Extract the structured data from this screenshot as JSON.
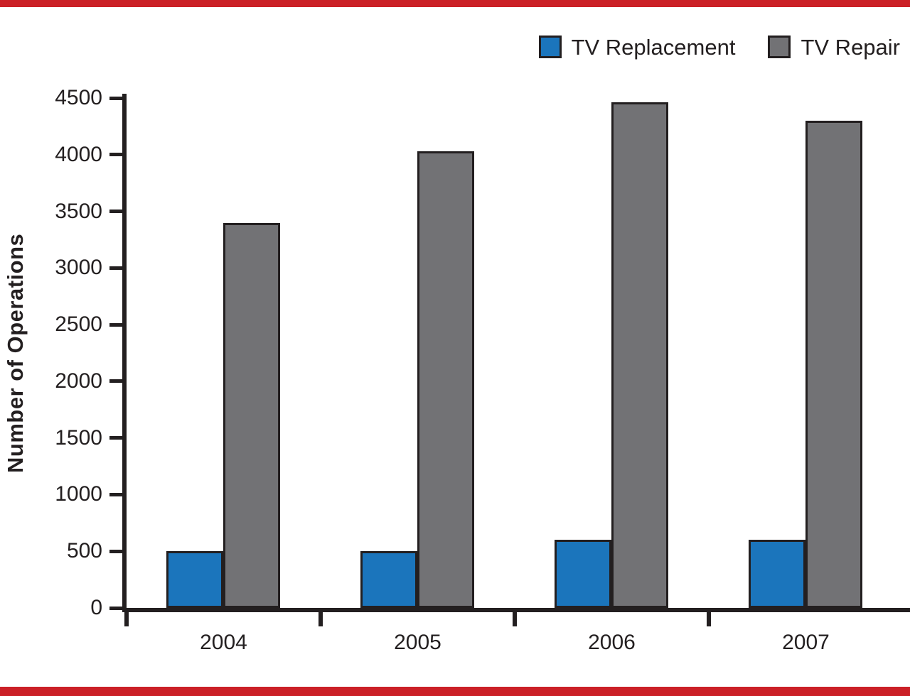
{
  "page": {
    "background": "#ffffff",
    "border_color": "#cb2027",
    "text_color": "#231f20"
  },
  "chart_data": {
    "type": "bar",
    "title": "",
    "categories": [
      "2004",
      "2005",
      "2006",
      "2007"
    ],
    "series": [
      {
        "name": "TV Replacement",
        "color": "#1b75bc",
        "values": [
          500,
          500,
          600,
          600
        ]
      },
      {
        "name": "TV Repair",
        "color": "#727275",
        "values": [
          3400,
          4030,
          4460,
          4300
        ]
      }
    ],
    "xlabel": "",
    "ylabel": "Number of Operations",
    "ylim": [
      0,
      4500
    ],
    "yticks": [
      0,
      500,
      1000,
      1500,
      2000,
      2500,
      3000,
      3500,
      4000,
      4500
    ],
    "grid": false,
    "legend_position": "top-right"
  }
}
